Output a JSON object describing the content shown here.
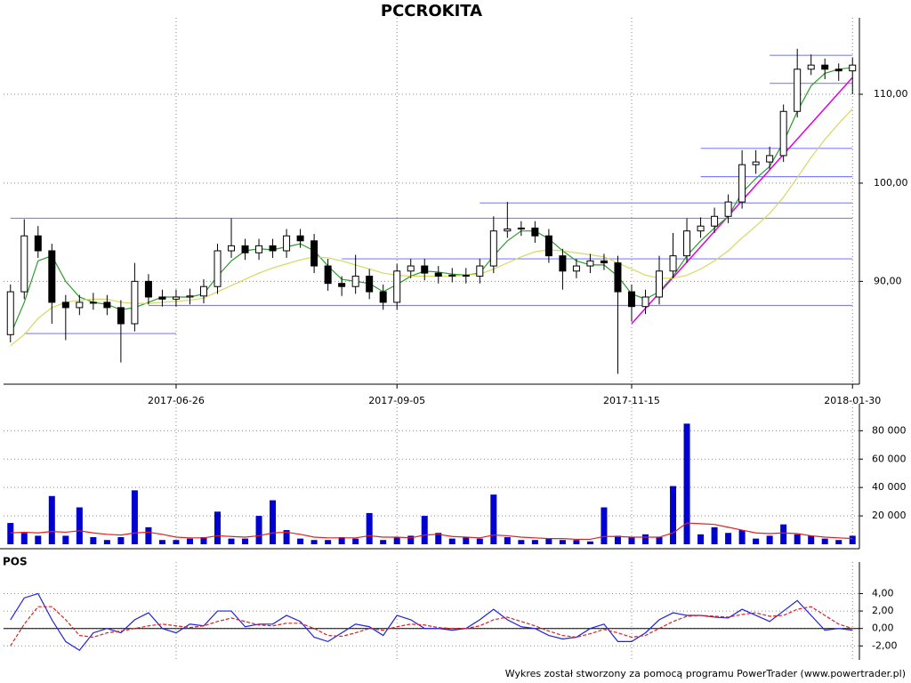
{
  "chart_data": [
    {
      "type": "candlestick",
      "title": "PCCROKITA",
      "log": true,
      "grid": true,
      "categories": [
        null,
        null,
        null,
        null,
        null,
        null,
        null,
        null,
        null,
        null,
        null,
        null,
        "2017-06-26",
        null,
        null,
        null,
        null,
        null,
        null,
        null,
        null,
        null,
        null,
        null,
        null,
        null,
        null,
        null,
        "2017-09-05",
        null,
        null,
        null,
        null,
        null,
        null,
        null,
        null,
        null,
        null,
        null,
        null,
        null,
        null,
        null,
        null,
        "2017-11-15",
        null,
        null,
        null,
        null,
        null,
        null,
        null,
        null,
        null,
        null,
        null,
        null,
        null,
        null,
        null,
        "2018-01-30"
      ],
      "open": [
        85,
        89,
        94.5,
        93,
        88,
        87.5,
        88,
        88,
        87.5,
        86,
        90,
        88.5,
        88.3,
        88.5,
        88.6,
        89.5,
        93,
        93.5,
        92.8,
        93.5,
        93,
        94.5,
        94,
        91.5,
        89.8,
        89.5,
        90.5,
        89,
        88,
        91,
        91.5,
        90.8,
        90.5,
        90.6,
        90.5,
        91.5,
        95,
        95.2,
        95.3,
        94.5,
        92.5,
        91,
        91.5,
        92,
        91.8,
        89,
        87.6,
        88.5,
        91,
        92.5,
        95,
        95.5,
        96.5,
        98,
        102,
        102.3,
        103,
        108,
        113,
        113.5,
        113,
        112.8
      ],
      "high": [
        89.7,
        96.2,
        95.5,
        93.7,
        88.7,
        88.7,
        88.9,
        88.7,
        88.2,
        91.8,
        90.7,
        89.2,
        89.2,
        89.3,
        90.2,
        93.7,
        96.3,
        94.2,
        94.2,
        94.2,
        95.2,
        95.2,
        94.7,
        92.2,
        90.5,
        92.6,
        91.2,
        89.7,
        91.7,
        92.2,
        92.2,
        91.5,
        91.3,
        91.3,
        92.2,
        96.5,
        98,
        96,
        96,
        95.2,
        93.2,
        92.2,
        92.7,
        92.7,
        92.5,
        89.7,
        89.2,
        92.5,
        94.8,
        96.3,
        96.4,
        97.4,
        98.8,
        103.6,
        103.6,
        104,
        108.8,
        115.5,
        114.8,
        114.3,
        113.7,
        114.4
      ],
      "low": [
        84.3,
        88.3,
        92.3,
        86,
        84.5,
        86.8,
        87.3,
        86.8,
        82.5,
        85.3,
        87.8,
        87.6,
        87.6,
        87.8,
        87.9,
        88.8,
        92.3,
        92.1,
        92.1,
        92.3,
        92.3,
        93.3,
        90.8,
        89.1,
        88.6,
        88.8,
        88.3,
        87.3,
        87.3,
        90.3,
        90.1,
        89.8,
        89.9,
        89.8,
        89.8,
        90.8,
        94.3,
        94.5,
        93.8,
        91.8,
        89.2,
        90.3,
        90.8,
        91.1,
        81.5,
        86.2,
        86.9,
        87.8,
        90.3,
        91.8,
        94.3,
        94.8,
        95.8,
        97.3,
        101,
        101.5,
        102.3,
        107.3,
        112.3,
        111.8,
        111.6,
        110
      ],
      "close": [
        89,
        94.5,
        93,
        88,
        87.5,
        88,
        88,
        87.5,
        86,
        90,
        88.5,
        88.3,
        88.5,
        88.6,
        89.5,
        93,
        93.5,
        92.8,
        93.5,
        93,
        94.5,
        94,
        91.5,
        89.8,
        89.5,
        90.5,
        89,
        88,
        91,
        91.5,
        90.8,
        90.5,
        90.6,
        90.5,
        91.5,
        95,
        95.2,
        95.3,
        94.5,
        92.5,
        91,
        91.5,
        92,
        91.8,
        89,
        87.6,
        88.5,
        91,
        92.5,
        95,
        95.5,
        96.5,
        98,
        102,
        102.3,
        103,
        108,
        113,
        113.5,
        113,
        112.8,
        113.5
      ],
      "up_color": "#ffffff",
      "down_color": "#000000",
      "series": [
        {
          "color": "#2e9b2e",
          "values": [
            85,
            88,
            92,
            92.5,
            90,
            88.5,
            88,
            87.8,
            87.3,
            87.5,
            88,
            88.5,
            88.5,
            88.5,
            88.8,
            90.5,
            92,
            93,
            93.2,
            93.1,
            93.4,
            93.7,
            93,
            91.5,
            90.2,
            90,
            89.8,
            89,
            89.7,
            90.5,
            91,
            90.9,
            90.7,
            90.6,
            90.8,
            92.5,
            94,
            95,
            95,
            94.2,
            93,
            92,
            91.6,
            91.6,
            90.5,
            88.8,
            88.3,
            89,
            90.5,
            92.5,
            94,
            95.3,
            96.5,
            99,
            100.5,
            101.8,
            104.5,
            108,
            111,
            112.5,
            113,
            113.2
          ]
        },
        {
          "color": "#d8d860",
          "values": [
            84,
            85,
            86.5,
            87.5,
            88,
            88.2,
            88.3,
            88.3,
            88,
            87.9,
            87.9,
            88,
            88.1,
            88.2,
            88.4,
            89,
            89.6,
            90.2,
            90.8,
            91.3,
            91.7,
            92.1,
            92.4,
            92.3,
            92,
            91.6,
            91.2,
            90.8,
            90.6,
            90.5,
            90.5,
            90.5,
            90.5,
            90.6,
            90.7,
            91.2,
            91.8,
            92.4,
            92.9,
            93.1,
            93,
            92.8,
            92.6,
            92.4,
            91.8,
            91.2,
            90.6,
            90.3,
            90.3,
            90.6,
            91.2,
            92,
            93,
            94.3,
            95.5,
            96.8,
            98.5,
            100.6,
            102.8,
            104.8,
            106.6,
            108.3
          ]
        }
      ],
      "levels": [
        {
          "value": 96.3,
          "from": 0,
          "to": 61
        },
        {
          "value": 85.1,
          "from": 1,
          "to": 12
        },
        {
          "value": 87.7,
          "from": 10,
          "to": 61
        },
        {
          "value": 92.2,
          "from": 24,
          "to": 61
        },
        {
          "value": 97.9,
          "from": 34,
          "to": 61
        },
        {
          "value": 100.7,
          "from": 50,
          "to": 61
        },
        {
          "value": 103.8,
          "from": 50,
          "to": 61
        },
        {
          "value": 111.3,
          "from": 55,
          "to": 61
        },
        {
          "value": 114.7,
          "from": 55,
          "to": 61
        }
      ],
      "level_color": "#8080ff",
      "trendline": {
        "from": 45,
        "to": 61,
        "start": 86,
        "end": 112,
        "color": "#e000e0"
      },
      "ylim": [
        80.6,
        118.5
      ],
      "yticks": [
        {
          "value": 90,
          "label": "90,00"
        },
        {
          "value": 100,
          "label": "100,00"
        },
        {
          "value": 110,
          "label": "110,00"
        }
      ]
    },
    {
      "type": "bar",
      "grid": true,
      "color": "#0000d0",
      "values": [
        15000,
        8000,
        6000,
        34000,
        6000,
        26000,
        5000,
        3000,
        5000,
        38000,
        12000,
        3000,
        3000,
        4000,
        5000,
        23000,
        4000,
        4000,
        20000,
        31000,
        10000,
        4000,
        3000,
        3000,
        5000,
        4000,
        22000,
        3000,
        5000,
        6000,
        20000,
        8000,
        4000,
        5000,
        4000,
        35000,
        5000,
        3000,
        3000,
        4000,
        3000,
        3000,
        2000,
        26000,
        6000,
        5000,
        7000,
        5000,
        41000,
        85000,
        7000,
        12000,
        8000,
        10000,
        4000,
        6000,
        14000,
        7000,
        6000,
        4000,
        3000,
        6000
      ],
      "series": [
        {
          "color": "#e02020",
          "values": [
            8000,
            8500,
            8000,
            9000,
            8500,
            9500,
            8000,
            7000,
            6500,
            8000,
            8500,
            7000,
            5000,
            4500,
            4500,
            6000,
            5500,
            5000,
            6000,
            8000,
            8500,
            7000,
            5000,
            4500,
            4500,
            4500,
            6000,
            5000,
            5000,
            4500,
            6500,
            7000,
            5500,
            5000,
            4500,
            6500,
            6000,
            5000,
            4500,
            4000,
            4000,
            3500,
            3500,
            5500,
            5500,
            5000,
            5000,
            5000,
            8000,
            15000,
            14500,
            14000,
            12000,
            10000,
            8000,
            7500,
            8000,
            7500,
            6000,
            5000,
            4500,
            4000
          ]
        }
      ],
      "ylim": [
        0,
        94000
      ],
      "yticks": [
        {
          "value": 20000,
          "label": "20 000"
        },
        {
          "value": 40000,
          "label": "40 000"
        },
        {
          "value": 60000,
          "label": "60 000"
        },
        {
          "value": 80000,
          "label": "80 000"
        }
      ]
    },
    {
      "type": "line",
      "title": "POS",
      "grid": true,
      "series": [
        {
          "color": "#2020e0",
          "values": [
            1,
            3.5,
            4,
            1,
            -1.5,
            -2.5,
            -0.5,
            0,
            -0.5,
            1,
            1.8,
            0,
            -0.5,
            0.5,
            0.3,
            2,
            2,
            0.2,
            0.5,
            0.5,
            1.5,
            0.8,
            -1,
            -1.5,
            -0.5,
            0.5,
            0.2,
            -0.8,
            1.5,
            1,
            0,
            0,
            -0.2,
            0,
            1,
            2.2,
            1,
            0.2,
            0,
            -0.8,
            -1.2,
            -1,
            0,
            0.5,
            -1.5,
            -1.5,
            -0.5,
            1,
            1.8,
            1.5,
            1.5,
            1.3,
            1.2,
            2.2,
            1.5,
            0.8,
            2,
            3.2,
            1.5,
            -0.2,
            0,
            -0.2
          ]
        },
        {
          "color": "#e02020",
          "dash": true,
          "values": [
            -2,
            0.5,
            2.5,
            2.5,
            1,
            -0.8,
            -1,
            -0.5,
            -0.3,
            0,
            0.3,
            0.5,
            0.3,
            0.1,
            0.3,
            0.8,
            1.2,
            0.8,
            0.4,
            0.3,
            0.6,
            0.6,
            0,
            -0.8,
            -0.9,
            -0.5,
            0,
            -0.2,
            0.2,
            0.5,
            0.4,
            0.1,
            0,
            0,
            0.3,
            1,
            1.3,
            0.8,
            0.3,
            -0.3,
            -0.8,
            -1,
            -0.6,
            -0.1,
            -0.5,
            -1,
            -0.8,
            0,
            0.8,
            1.4,
            1.5,
            1.4,
            1.3,
            1.6,
            1.8,
            1.4,
            1.5,
            2.2,
            2.5,
            1.5,
            0.5,
            0
          ]
        }
      ],
      "ylim": [
        -3.6,
        6.8
      ],
      "yticks": [
        {
          "value": -2,
          "label": "-2,00"
        },
        {
          "value": 0,
          "label": "0,00"
        },
        {
          "value": 2,
          "label": "2,00"
        },
        {
          "value": 4,
          "label": "4,00"
        }
      ]
    }
  ],
  "footer": "Wykres został stworzony za pomocą programu PowerTrader (www.powertrader.pl)"
}
